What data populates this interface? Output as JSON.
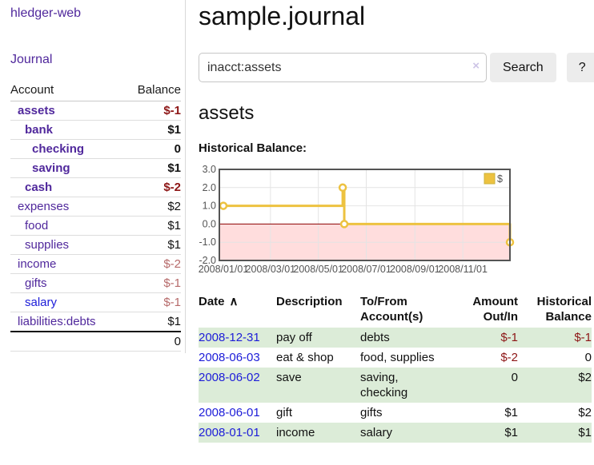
{
  "sidebar": {
    "app_link": "hledger-web",
    "journal_link": "Journal",
    "accounts_table": {
      "account_header": "Account",
      "balance_header": "Balance",
      "rows": [
        {
          "account": "assets",
          "balance": "$-1",
          "depth": 1,
          "bold": true
        },
        {
          "account": "bank",
          "balance": "$1",
          "depth": 2,
          "bold": true
        },
        {
          "account": "checking",
          "balance": "0",
          "depth": 3,
          "bold": true
        },
        {
          "account": "saving",
          "balance": "$1",
          "depth": 3,
          "bold": true
        },
        {
          "account": "cash",
          "balance": "$-2",
          "depth": 2,
          "bold": true
        },
        {
          "account": "expenses",
          "balance": "$2",
          "depth": 1,
          "bold": false
        },
        {
          "account": "food",
          "balance": "$1",
          "depth": 2,
          "bold": false
        },
        {
          "account": "supplies",
          "balance": "$1",
          "depth": 2,
          "bold": false
        },
        {
          "account": "income",
          "balance": "$-2",
          "depth": 1,
          "bold": false
        },
        {
          "account": "gifts",
          "balance": "$-1",
          "depth": 2,
          "bold": false
        },
        {
          "account": "salary",
          "balance": "$-1",
          "depth": 2,
          "bold": false,
          "link_style": "blue"
        },
        {
          "account": "liabilities:debts",
          "balance": "$1",
          "depth": 1,
          "bold": false
        }
      ],
      "total": "0"
    }
  },
  "header": {
    "title": "sample.journal"
  },
  "search": {
    "value": "inacct:assets",
    "clear_icon": "×",
    "button_label": "Search",
    "help_label": "?"
  },
  "account_page": {
    "heading": "assets",
    "chart_title": "Historical Balance:"
  },
  "chart_data": {
    "type": "line",
    "step": true,
    "title": "Historical Balance",
    "legend": "$",
    "legend_position": "top-right",
    "grid": true,
    "series": [
      {
        "name": "$",
        "color": "#edc240",
        "points": [
          [
            "2008-01-01",
            1
          ],
          [
            "2008-06-01",
            2
          ],
          [
            "2008-06-03",
            0
          ],
          [
            "2008-12-31",
            -1
          ]
        ]
      }
    ],
    "x_ticks": [
      "2008/01/01",
      "2008/03/01",
      "2008/05/01",
      "2008/07/01",
      "2008/09/01",
      "2008/11/01"
    ],
    "y_ticks": [
      "3.0",
      "2.0",
      "1.0",
      "0.0",
      "-1.0",
      "-2.0"
    ],
    "ylim": [
      -2,
      3
    ],
    "x_range": [
      "2008-01-01",
      "2008-12-31"
    ],
    "negative_region_color": "#ffdddd",
    "zero_line_color": "#8b0000",
    "gridline_color": "#e4e4e4",
    "border_color": "#545454"
  },
  "register_table": {
    "sort_icon": "∧",
    "headers": [
      "Date",
      "Description",
      "To/From Account(s)",
      "Amount Out/In",
      "Historical Balance"
    ],
    "rows": [
      {
        "date": "2008-12-31",
        "description": "pay off",
        "accounts": "debts",
        "amount": "$-1",
        "balance": "$-1"
      },
      {
        "date": "2008-06-03",
        "description": "eat & shop",
        "accounts": "food, supplies",
        "amount": "$-2",
        "balance": "0"
      },
      {
        "date": "2008-06-02",
        "description": "save",
        "accounts": "saving, checking",
        "amount": "0",
        "balance": "$2"
      },
      {
        "date": "2008-06-01",
        "description": "gift",
        "accounts": "gifts",
        "amount": "$1",
        "balance": "$2"
      },
      {
        "date": "2008-01-01",
        "description": "income",
        "accounts": "salary",
        "amount": "$1",
        "balance": "$1"
      }
    ]
  }
}
